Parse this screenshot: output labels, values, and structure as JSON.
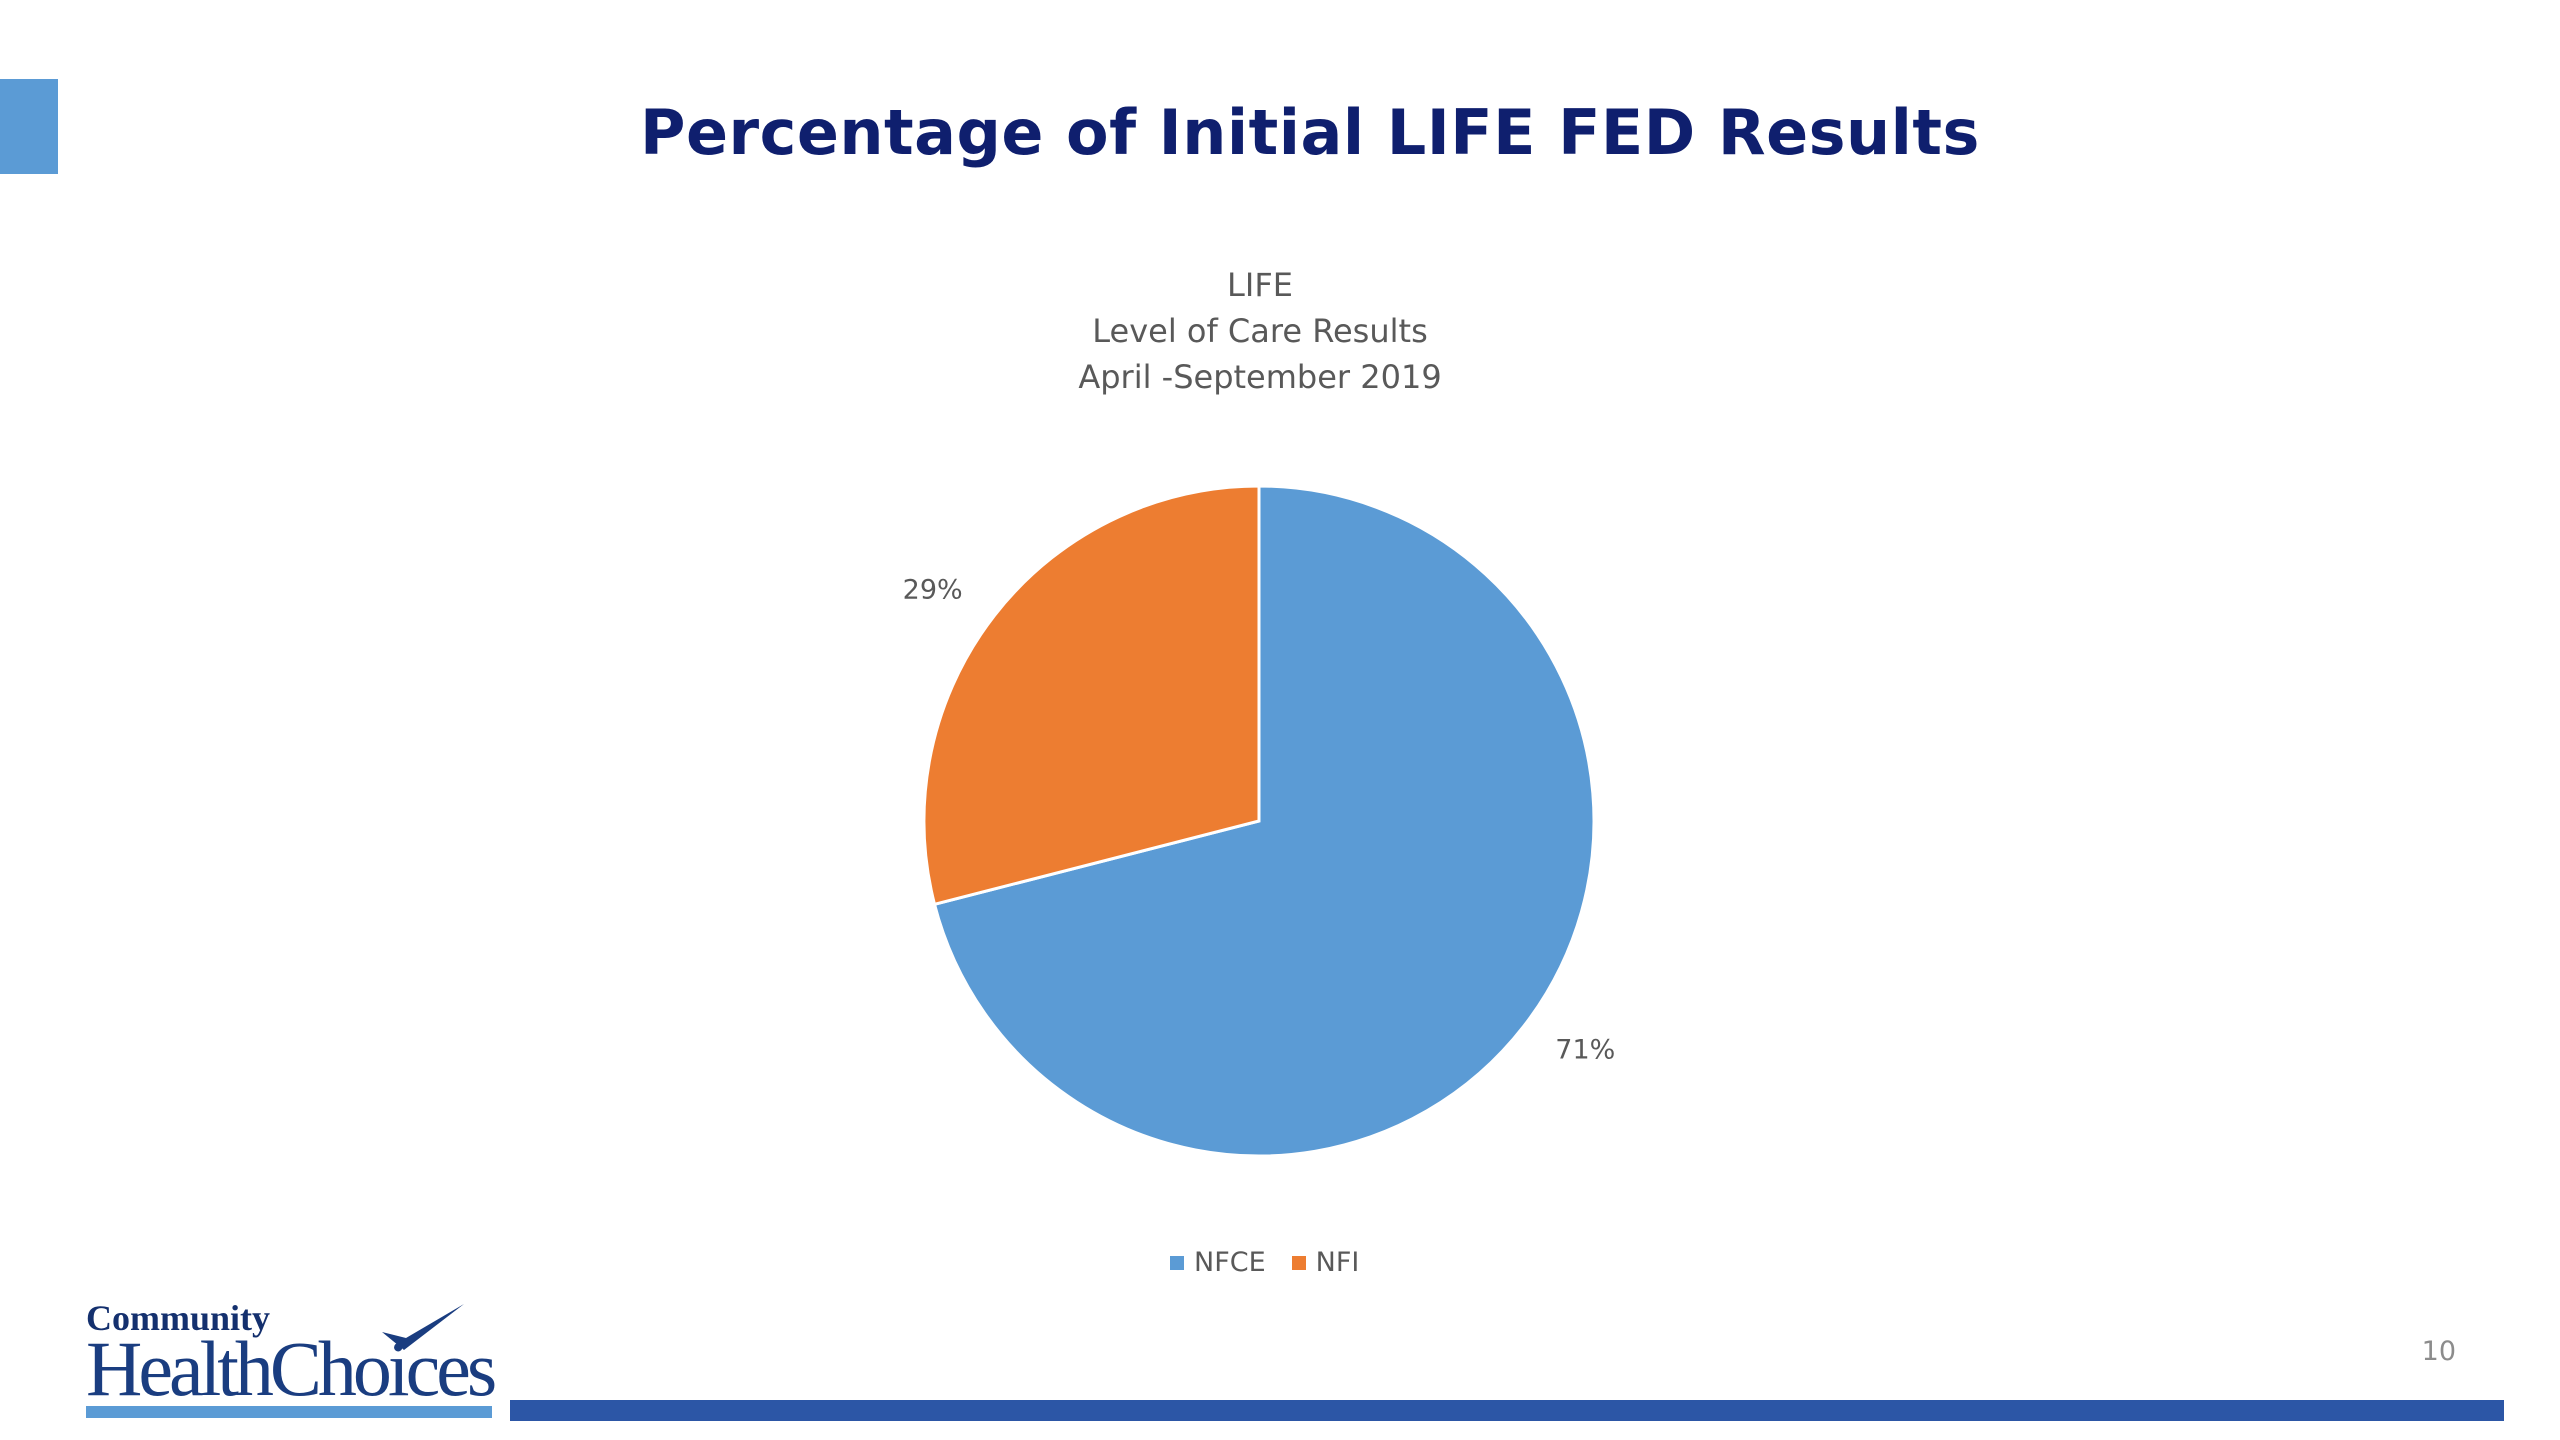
{
  "slide": {
    "title": "Percentage of Initial LIFE FED Results",
    "page_number": "10",
    "accent_color": "#5b9bd5",
    "title_color": "#0f1f6e",
    "footer_bar_color": "#2c56a6"
  },
  "logo": {
    "top_word": "Community",
    "main_word": "HealthChoices",
    "icon": "checkmark-icon"
  },
  "chart_data": {
    "type": "pie",
    "title_lines": [
      "LIFE",
      "Level of Care Results",
      "April -September 2019"
    ],
    "categories": [
      "NFCE",
      "NFI"
    ],
    "values": [
      71,
      29
    ],
    "labels": [
      "71%",
      "29%"
    ],
    "colors": [
      "#5b9bd5",
      "#ed7d31"
    ],
    "start_angle_deg": 0,
    "direction": "clockwise",
    "legend_position": "bottom"
  }
}
